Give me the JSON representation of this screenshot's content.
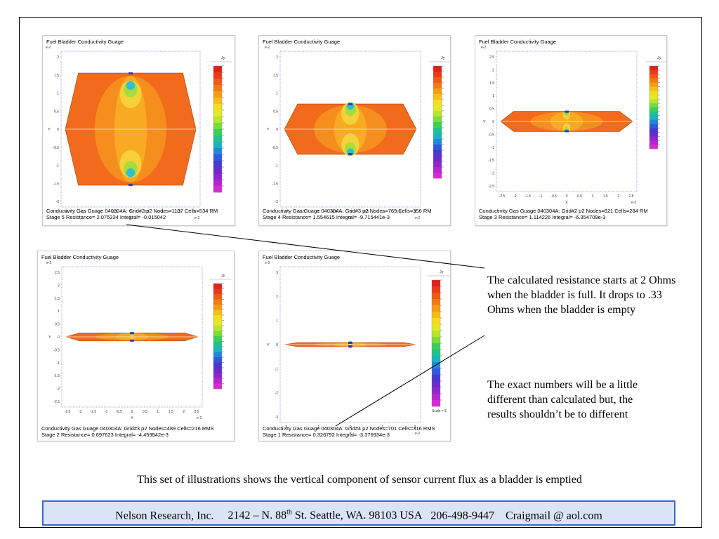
{
  "panels": [
    {
      "title": "Fuel Bladder Conductivity Guage",
      "footer_line1": "Conductivity Gas Guage  040304A:  Grid#2  p2  Nodes=1137 Cells=534 RM",
      "footer_line2": "Stage 5  Resistance=  2.075334  Integral= -0.015042",
      "legend_label": "Jy",
      "unit": "e-2",
      "x_axis": "X",
      "y_axis": "Y",
      "stage": 5,
      "resistance": 2.075334,
      "bladder_fill": 1.0,
      "y_ticks": [
        "2",
        "1.5",
        "1",
        "0.5",
        "0",
        "-0.5",
        "-1",
        "-1.5",
        "-2"
      ],
      "x_ticks": [
        "-2",
        "-1.5",
        "-1",
        "-0.5",
        "0",
        "0.5",
        "1",
        "1.5",
        "2"
      ]
    },
    {
      "title": "Fuel Bladder Conductivity Guage",
      "footer_line1": "Conductivity Gas Guage  040304A:  Grid#3  p2  Nodes=769 Cells=356 RM",
      "footer_line2": "Stage 4  Resistance=  1.554615  Integral= -9.715441e-3",
      "legend_label": "Jy",
      "unit": "e-2",
      "x_axis": "X",
      "y_axis": "Y",
      "stage": 4,
      "resistance": 1.554615,
      "bladder_fill": 0.45,
      "y_ticks": [
        "2",
        "1.5",
        "1",
        "0.5",
        "0",
        "-0.5",
        "-1",
        "-1.5",
        "-2"
      ],
      "x_ticks": [
        "-2",
        "-1.5",
        "-1",
        "-0.5",
        "0",
        "0.5",
        "1",
        "1.5",
        "2"
      ]
    },
    {
      "title": "Fuel Bladder Conductivity Guage",
      "footer_line1": "Conductivity Gas Guage  040304A:  Grid#2  p2  Nodes=621 Cells=284 RM",
      "footer_line2": "Stage 3  Resistance=  1.114226  Integral= -6.354709e-3",
      "legend_label": "Jy",
      "unit": "e-2",
      "x_axis": "X",
      "y_axis": "Y",
      "stage": 3,
      "resistance": 1.114226,
      "bladder_fill": 0.2,
      "y_ticks": [
        "2.5",
        "2",
        "1.5",
        "1",
        "0.5",
        "0",
        "-0.5",
        "-1",
        "-1.5",
        "-2",
        "-2.5"
      ],
      "x_ticks": [
        "-2.5",
        "-2",
        "-1.5",
        "-1",
        "-0.5",
        "0",
        "0.5",
        "1",
        "1.5",
        "2",
        "2.5"
      ]
    },
    {
      "title": "Fuel Bladder Conductivity Guage",
      "footer_line1": "Conductivity Gas Guage  040304A:  Grid#3  p2  Nodes=489 Cells=216 RMS",
      "footer_line2": "Stage 2  Resistance=  0.697623  Integral= -4.459542e-3",
      "legend_label": "Jy",
      "unit": "e-2",
      "x_axis": "X",
      "y_axis": "Y",
      "stage": 2,
      "resistance": 0.697623,
      "bladder_fill": 0.08,
      "y_ticks": [
        "2.5",
        "2",
        "1.5",
        "1",
        "0.5",
        "0",
        "-0.5",
        "-1",
        "-1.5",
        "-2",
        "-2.5"
      ],
      "x_ticks": [
        "-2.5",
        "-2",
        "-1.5",
        "-1",
        "-0.5",
        "0",
        "0.5",
        "1",
        "1.5",
        "2",
        "2.5"
      ]
    },
    {
      "title": "Fuel Bladder Conductivity Guage",
      "footer_line1": "Conductivity Gas Guage  040304A:  Grid#4  p2  Nodes=701 Cells=316 RMS",
      "footer_line2": "Stage 1  Resistance=  0.326792  Integral= -3.376934e-3",
      "legend_label": "Jy",
      "unit": "e-2",
      "x_axis": "X",
      "y_axis": "Y",
      "stage": 1,
      "resistance": 0.326792,
      "bladder_fill": 0.035,
      "scale_label": "Scale = E",
      "y_ticks": [
        "3",
        "2",
        "1",
        "0",
        "-1",
        "-2",
        "-3"
      ],
      "x_ticks": [
        "-2",
        "-1",
        "0",
        "1",
        "2"
      ]
    }
  ],
  "notes": {
    "resistance_note": "The calculated resistance starts at 2 Ohms when the bladder is full.  It drops to .33 Ohms when the bladder is empty",
    "accuracy_note": "The exact numbers will be a little different than calculated but, the results shouldn’t be to different"
  },
  "caption": "This set of illustrations shows the vertical component of sensor current flux as a bladder is emptied",
  "footer": {
    "company": "Nelson Research, Inc.",
    "street_prefix": "2142 –  N. 88",
    "street_suffix": "th",
    "street_rest": " St. Seattle, WA. 98103   USA",
    "phone": "206-498-9447",
    "email": "Craigmail @ aol.com"
  },
  "colors": {
    "fill": "#f26b1d",
    "inner": "#f7941d",
    "yellow": "#f6d13a",
    "accent_blue": "#3d66c8",
    "footer_bg": "#d9e4f5"
  }
}
